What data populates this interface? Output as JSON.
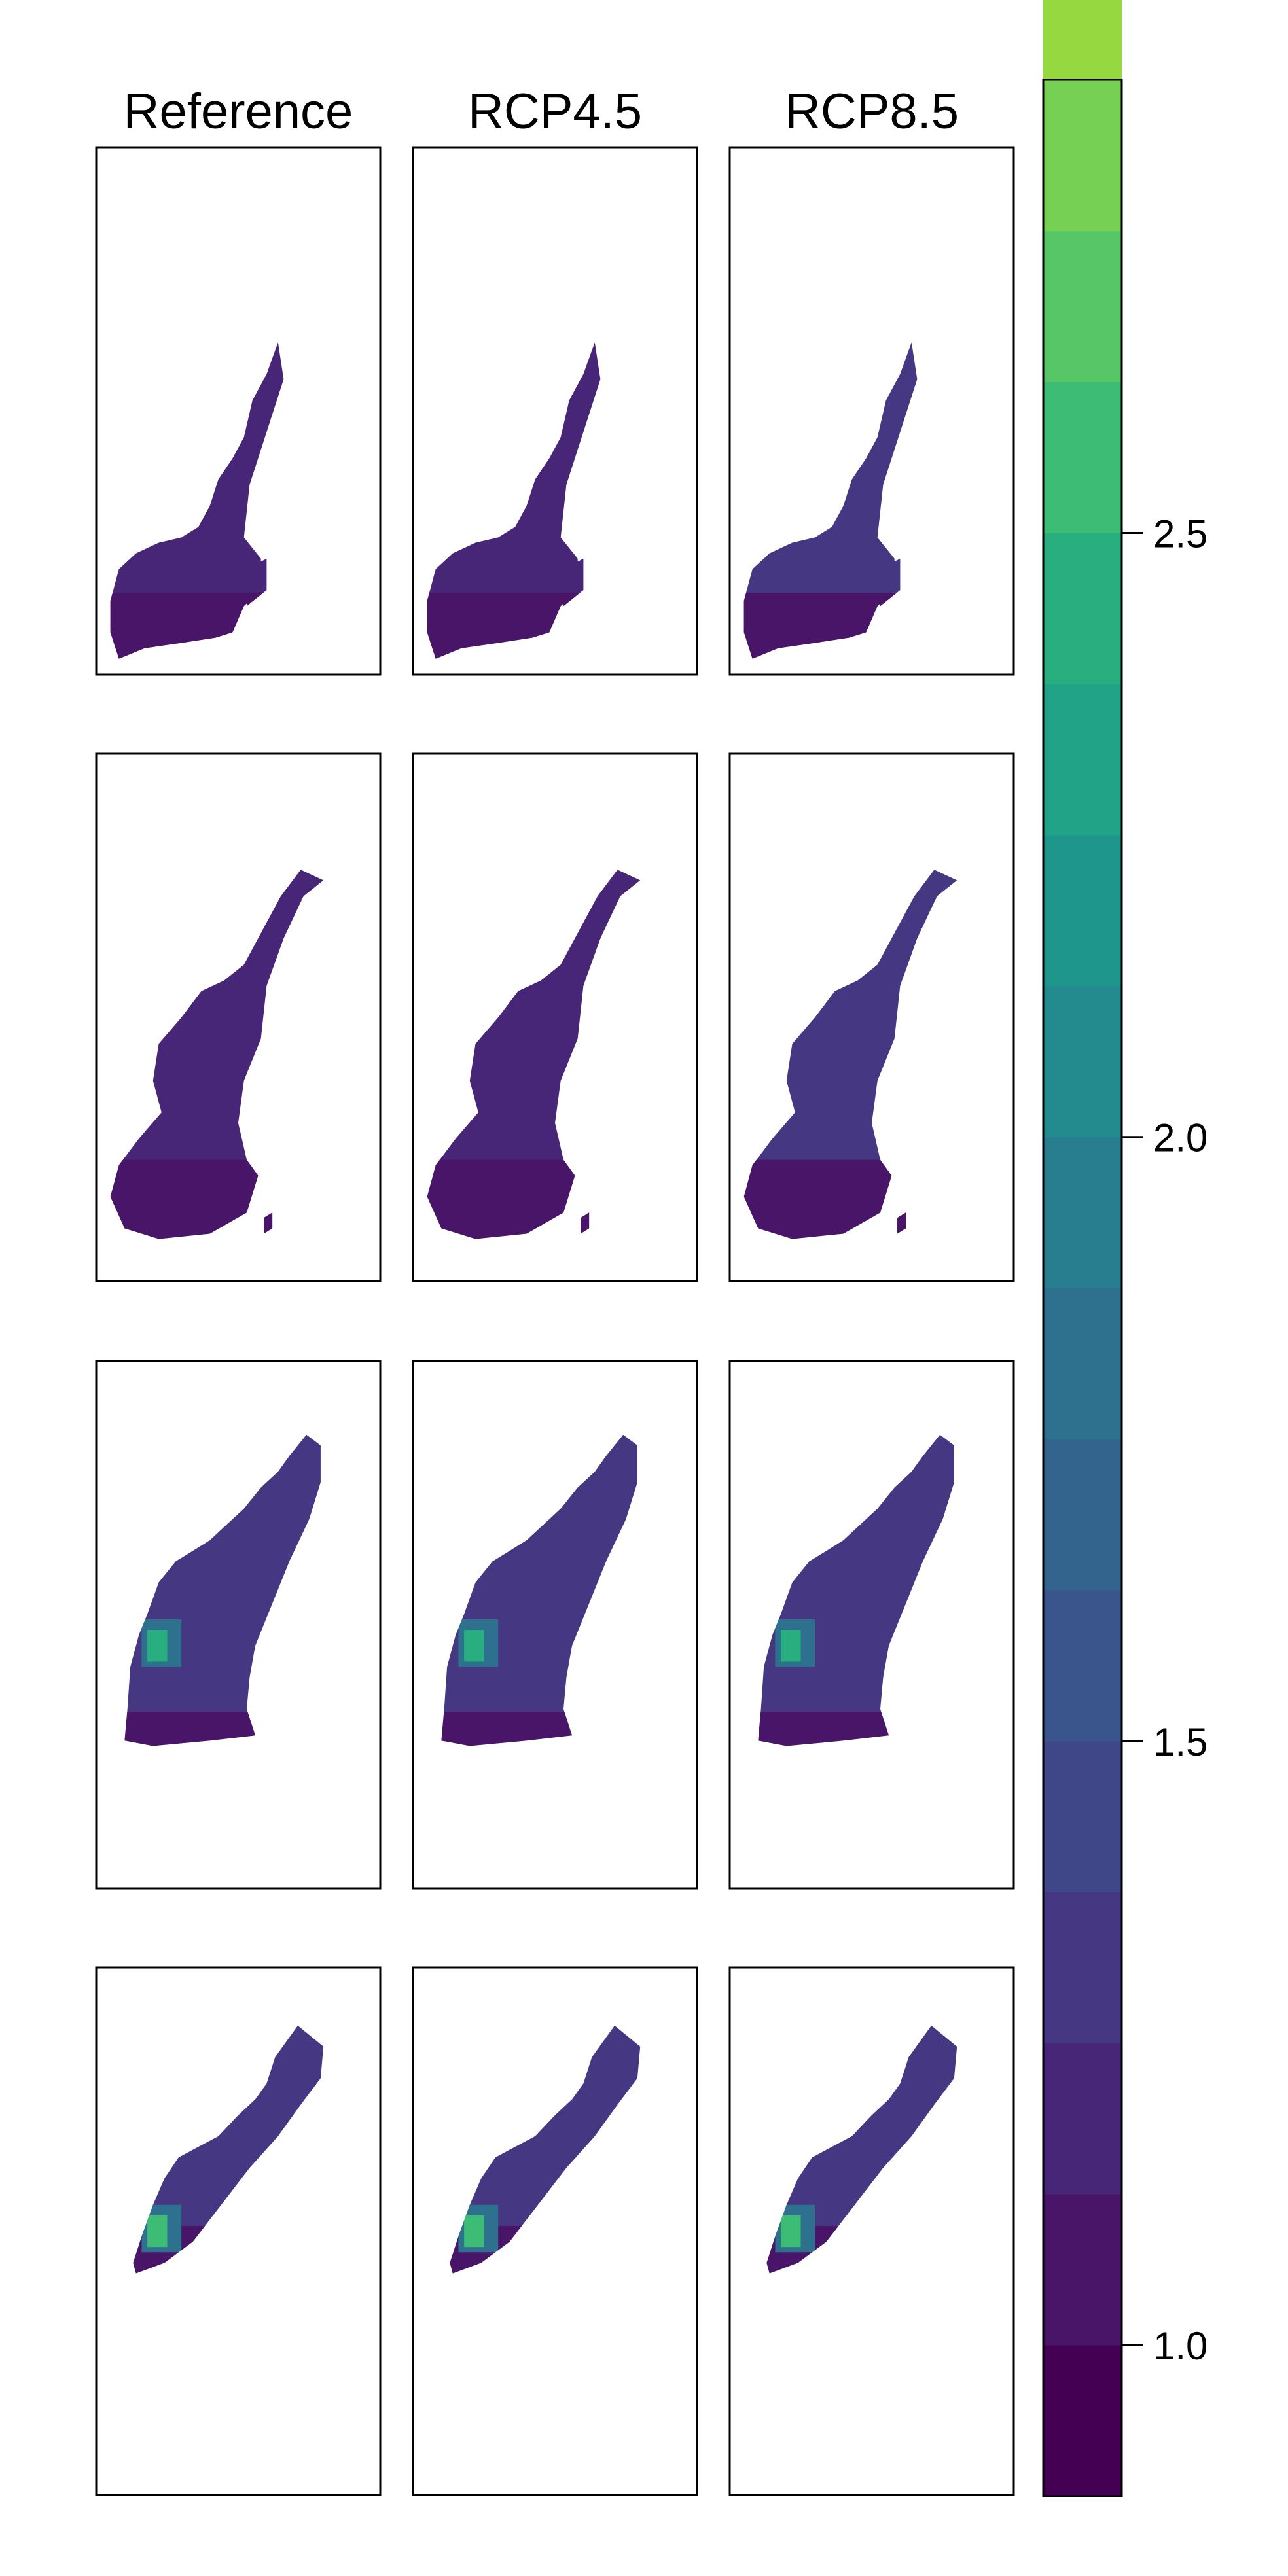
{
  "chart_data": {
    "type": "heatmap",
    "title": "",
    "column_titles": [
      "Reference",
      "RCP4.5",
      "RCP8.5"
    ],
    "rows": 4,
    "panel_fill_levels": [
      [
        [
          1.0,
          1.2
        ],
        [
          1.0,
          1.22
        ],
        [
          1.0,
          1.25
        ]
      ],
      [
        [
          1.0,
          1.2
        ],
        [
          1.0,
          1.22
        ],
        [
          1.0,
          1.25
        ]
      ],
      [
        [
          1.05,
          2.4
        ],
        [
          1.05,
          2.4
        ],
        [
          1.05,
          2.45
        ]
      ],
      [
        [
          1.1,
          2.5
        ],
        [
          1.1,
          2.55
        ],
        [
          1.1,
          2.6
        ]
      ]
    ],
    "colorbar": {
      "range": [
        0.875,
        2.875
      ],
      "bin_width": 0.125,
      "ticks": [
        1.0,
        1.5,
        2.0,
        2.5
      ],
      "tick_labels": [
        "1.0",
        "1.5",
        "2.0",
        "2.5"
      ],
      "colors": [
        "#440154",
        "#481568",
        "#482677",
        "#453781",
        "#3F4788",
        "#39558C",
        "#32648E",
        "#2D718E",
        "#287D8E",
        "#238A8D",
        "#1F968B",
        "#20A386",
        "#29AF7F",
        "#3CBC75",
        "#56C667",
        "#75D054",
        "#95D840",
        "#BADE28",
        "#DDE318",
        "#FDE725"
      ]
    }
  }
}
